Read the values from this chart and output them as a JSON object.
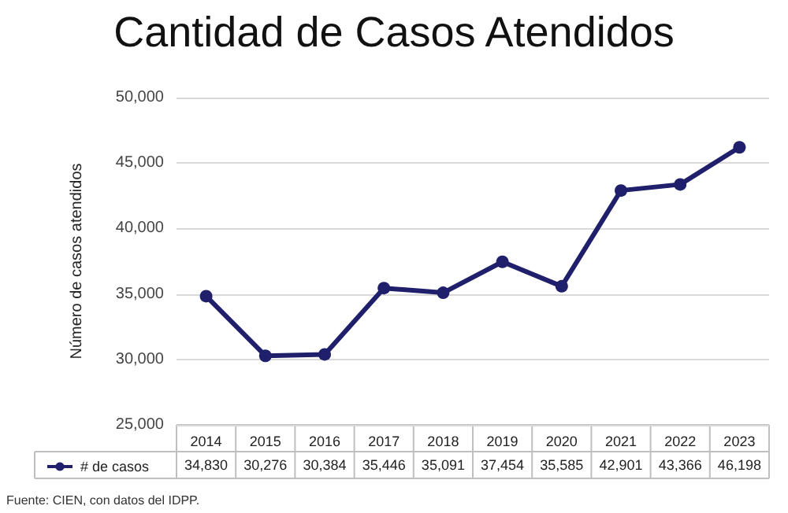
{
  "chart_data": {
    "type": "line",
    "title": "Cantidad de Casos Atendidos",
    "ylabel": "Número de casos atendidos",
    "categories": [
      "2014",
      "2015",
      "2016",
      "2017",
      "2018",
      "2019",
      "2020",
      "2021",
      "2022",
      "2023"
    ],
    "series": [
      {
        "name": "# de casos",
        "color": "#1f1f6b",
        "values": [
          34830,
          30276,
          30384,
          35446,
          35091,
          37454,
          35585,
          42901,
          43366,
          46198
        ],
        "value_labels": [
          "34,830",
          "30,276",
          "30,384",
          "35,446",
          "35,091",
          "37,454",
          "35,585",
          "42,901",
          "43,366",
          "46,198"
        ]
      }
    ],
    "ylim": [
      25000,
      50000
    ],
    "yticks": [
      {
        "value": 25000,
        "label": "25,000"
      },
      {
        "value": 30000,
        "label": "30,000"
      },
      {
        "value": 35000,
        "label": "35,000"
      },
      {
        "value": 40000,
        "label": "40,000"
      },
      {
        "value": 45000,
        "label": "45,000"
      },
      {
        "value": 50000,
        "label": "50,000"
      }
    ],
    "grid": "y",
    "legend": "bottom left",
    "marker": "circle",
    "line_style": "solid",
    "annotations": [
      "Fuente: CIEN, con datos del IDPP."
    ]
  }
}
